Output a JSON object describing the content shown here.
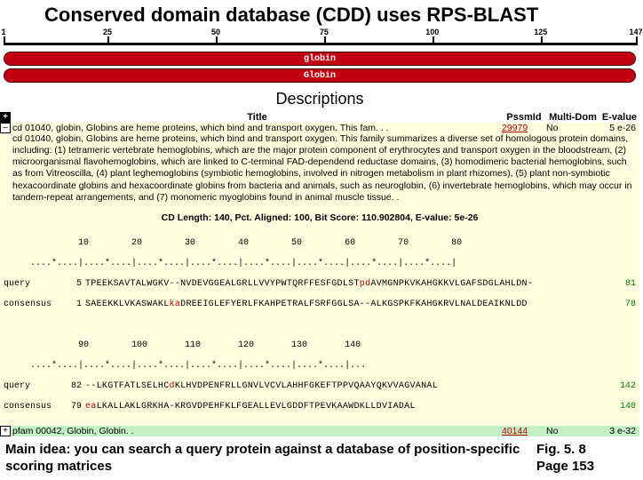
{
  "title_main": "Conserved domain database (CDD) uses RPS-BLAST",
  "ruler": {
    "ticks": [
      1,
      25,
      50,
      75,
      100,
      125,
      147
    ],
    "max": 147
  },
  "bars": [
    {
      "label": "globin",
      "color": "#c00010"
    },
    {
      "label": "Globin",
      "color": "#c00010"
    }
  ],
  "descriptions_title": "Descriptions",
  "header": {
    "title": "Title",
    "pssmid": "PssmId",
    "multidom": "Multi-Dom",
    "evalue": "E-value"
  },
  "row1": {
    "title": "cd 01040, globin, Globins are heme proteins, which bind and transport oxygen. This fam. . .",
    "pssmid": "29979",
    "multidom": "No",
    "evalue": "5 e-26"
  },
  "long_desc": "cd 01040, globin, Globins are heme proteins, which bind and transport oxygen. This family summarizes a diverse set of homologous protein domains, including: (1) tetrameric vertebrate hemoglobins, which are the major protein component of erythrocytes and transport oxygen in the bloodstream, (2) microorganismal flavohemoglobins, which are linked to C-terminal FAD-dependend reductase domains, (3) homodimeric bacterial hemoglobins, such as from Vitreoscilla, (4) plant leghemoglobins (symbiotic hemoglobins, involved in nitrogen metabolism in plant rhizomes), (5) plant non-symbiotic hexacoordinate globins and hexacoordinate globins from bacteria and animals, such as neuroglobin, (6) invertebrate hemoglobins, which may occur in tandem-repeat arrangements, and (7) monomeric myoglobins found in animal muscle tissue. .",
  "cd_stats": "CD Length: 140, Pct. Aligned: 100, Bit Score: 110.902804, E-value: 5e-26",
  "align": {
    "cols1": "              10        20        30        40        50        60        70        80",
    "ruler1": "     ....*....|....*....|....*....|....*....|....*....|....*....|....*....|....*....|",
    "q1_label": "query",
    "q1_start": "5",
    "q1_end": "81",
    "q1_seq_a": "TPEEKSAVTALWGKV--NVDEVGGEALGRLLVVYPWTQRFFESFGDLS",
    "q1_seq_b": "T",
    "q1_seq_c": "p",
    "q1_seq_d": "d",
    "q1_seq_e": "AVMGNPKVKAHGKKVLGAFSDGLAHLDN-",
    "c1_label": "consensus",
    "c1_start": "1",
    "c1_end": "78",
    "c1_seq_a": "SAEEKKLVKASWAKL",
    "c1_seq_b": "k",
    "c1_seq_c": "a",
    "c1_seq_d": "DREEIGLEFYERLFKAHPETRALFSRFGGLSA--ALKGSPKFKAHGKRVLNALDEAIKNLDD",
    "cols2": "              90        100       110       120       130       140",
    "ruler2": "     ....*....|....*....|....*....|....*....|....*....|....*....|...",
    "q2_label": "query",
    "q2_start": "82",
    "q2_end": "142",
    "q2_seq_a": "--LKGTFATLSELHC",
    "q2_seq_b": "d",
    "q2_seq_c": "KLHVDPENFRLLGNVLVCVLAHHFGKE",
    "q2_seq_d": "F",
    "q2_seq_e": "TPPVQAAYQKVVAGVANAL",
    "c2_label": "consensus",
    "c2_start": "79",
    "c2_end": "140",
    "c2_seq_a": "e",
    "c2_seq_b": "a",
    "c2_seq_c": "LKALLAKLGRKHA-KRGVDPEHFKLFGEALLEVLGDDFTPEVKAAWDKLLDVIADAL"
  },
  "row2": {
    "title": "pfam 00042, Globin, Globin. .",
    "pssmid": "40144",
    "multidom": "No",
    "evalue": "3 e-32"
  },
  "footer_main": "Main idea: you can search a query protein against a database of position-specific scoring matrices",
  "footer_fig": "Fig. 5. 8\nPage 153"
}
